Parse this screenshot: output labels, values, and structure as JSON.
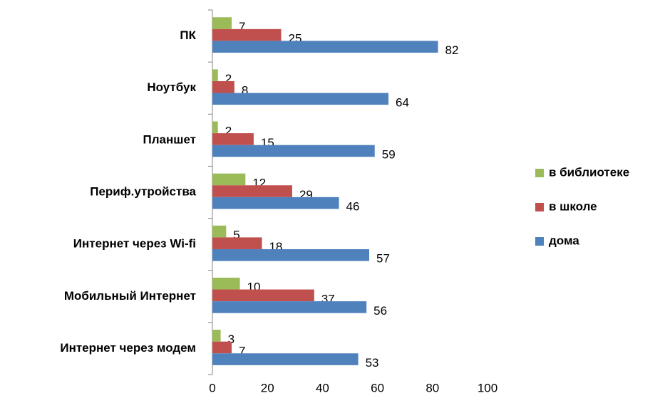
{
  "chart_data": {
    "type": "barh",
    "categories": [
      "ПК",
      "Ноутбук",
      "Планшет",
      "Периф.утройства",
      "Интернет через Wi-fi",
      "Мобильный Интернет",
      "Интернет через модем"
    ],
    "series": [
      {
        "name": "в библиотеке",
        "color": "#9bbb59",
        "values": [
          7,
          2,
          2,
          12,
          5,
          10,
          3
        ]
      },
      {
        "name": "в школе",
        "color": "#c0504d",
        "values": [
          25,
          8,
          15,
          29,
          18,
          37,
          7
        ]
      },
      {
        "name": "дома",
        "color": "#4f81bd",
        "values": [
          82,
          64,
          59,
          46,
          57,
          56,
          53
        ]
      }
    ],
    "xlim": [
      0,
      100
    ],
    "xticks": [
      0,
      20,
      40,
      60,
      80,
      100
    ],
    "legend": "right"
  }
}
